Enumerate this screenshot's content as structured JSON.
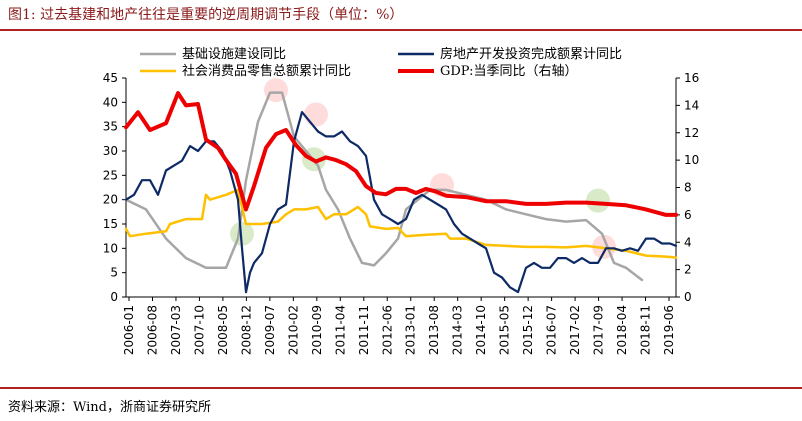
{
  "header": {
    "title": "图1:  过去基建和地产往往是重要的逆周期调节手段（单位：%）"
  },
  "footer": {
    "source": "资料来源：Wind，浙商证券研究所"
  },
  "colors": {
    "infra": "#a6a6a6",
    "realestate": "#0d2a66",
    "retail": "#ffc000",
    "gdp": "#ee0000"
  },
  "chart_data": {
    "type": "line",
    "x_ticks": [
      "2006-01",
      "2006-08",
      "2007-03",
      "2007-10",
      "2008-05",
      "2008-12",
      "2009-07",
      "2010-02",
      "2010-09",
      "2011-04",
      "2011-11",
      "2012-06",
      "2013-01",
      "2013-08",
      "2014-03",
      "2014-10",
      "2015-05",
      "2015-12",
      "2016-07",
      "2017-02",
      "2017-09",
      "2018-04",
      "2018-11",
      "2019-06"
    ],
    "y_left": {
      "ticks": [
        "0",
        "5",
        "10",
        "15",
        "20",
        "25",
        "30",
        "35",
        "40",
        "45"
      ],
      "ylim": [
        0,
        45
      ]
    },
    "y_right": {
      "ticks": [
        "0",
        "2",
        "4",
        "6",
        "8",
        "10",
        "12",
        "14",
        "16"
      ],
      "ylim": [
        0,
        16
      ]
    },
    "xlim": [
      2006.0,
      2019.75
    ],
    "legend": [
      {
        "name": "基础设施建设同比",
        "color": "#a6a6a6"
      },
      {
        "name": "房地产开发投资完成额累计同比",
        "color": "#0d2a66"
      },
      {
        "name": "社会消费品零售总额累计同比",
        "color": "#ffc000"
      },
      {
        "name": "GDP:当季同比（右轴）",
        "color": "#ee0000"
      }
    ],
    "series": [
      {
        "name": "基础设施建设同比",
        "axis": "left",
        "color": "#a6a6a6",
        "x": [
          2006.0,
          2006.5,
          2007.0,
          2007.5,
          2008.0,
          2008.5,
          2008.8,
          2009.0,
          2009.3,
          2009.6,
          2009.9,
          2010.2,
          2010.5,
          2010.8,
          2011.0,
          2011.3,
          2011.6,
          2011.9,
          2012.2,
          2012.5,
          2012.8,
          2013.0,
          2013.3,
          2013.6,
          2014.0,
          2014.5,
          2015.0,
          2015.5,
          2016.0,
          2016.5,
          2017.0,
          2017.5,
          2017.9,
          2018.2,
          2018.5,
          2018.9
        ],
        "y": [
          20,
          18,
          12,
          8,
          6,
          6,
          12,
          24,
          36,
          42,
          42,
          33,
          30,
          27,
          22,
          18,
          12,
          7,
          6.5,
          9,
          12,
          18,
          20,
          22,
          22,
          21,
          20,
          18,
          17,
          16,
          15.5,
          15.8,
          13,
          7,
          6,
          3.5
        ]
      },
      {
        "name": "房地产开发投资完成额累计同比",
        "axis": "left",
        "color": "#0d2a66",
        "x": [
          2006.0,
          2006.2,
          2006.4,
          2006.6,
          2006.8,
          2007.0,
          2007.2,
          2007.4,
          2007.6,
          2007.8,
          2008.0,
          2008.2,
          2008.4,
          2008.6,
          2008.8,
          2008.9,
          2009.0,
          2009.1,
          2009.2,
          2009.4,
          2009.6,
          2009.8,
          2010.0,
          2010.2,
          2010.4,
          2010.6,
          2010.8,
          2011.0,
          2011.2,
          2011.4,
          2011.6,
          2011.8,
          2012.0,
          2012.2,
          2012.4,
          2012.6,
          2012.8,
          2013.0,
          2013.2,
          2013.4,
          2013.6,
          2013.8,
          2014.0,
          2014.2,
          2014.4,
          2014.6,
          2014.8,
          2015.0,
          2015.2,
          2015.4,
          2015.6,
          2015.8,
          2016.0,
          2016.2,
          2016.4,
          2016.6,
          2016.8,
          2017.0,
          2017.2,
          2017.4,
          2017.6,
          2017.8,
          2018.0,
          2018.2,
          2018.4,
          2018.6,
          2018.8,
          2019.0,
          2019.2,
          2019.4,
          2019.6,
          2019.75
        ],
        "y": [
          20,
          21,
          24,
          24,
          21,
          26,
          27,
          28,
          31,
          30,
          32,
          32,
          30,
          26,
          20,
          10,
          1,
          5,
          7,
          9,
          15,
          18,
          19,
          32,
          38,
          36,
          34,
          33,
          33,
          34,
          32,
          31,
          29,
          20,
          17,
          16,
          15,
          16,
          20,
          21,
          20,
          19,
          18,
          15,
          13,
          12,
          11,
          10,
          5,
          4,
          2,
          1,
          6,
          7,
          6,
          6,
          8,
          8,
          7,
          8,
          7,
          7,
          10,
          10,
          9.5,
          10,
          9.5,
          12,
          12,
          11,
          11,
          10.5
        ]
      },
      {
        "name": "社会消费品零售总额累计同比",
        "axis": "left",
        "color": "#ffc000",
        "x": [
          2006.0,
          2006.1,
          2006.5,
          2007.0,
          2007.1,
          2007.5,
          2007.9,
          2008.0,
          2008.1,
          2008.5,
          2008.8,
          2009.0,
          2009.4,
          2009.8,
          2010.0,
          2010.2,
          2010.5,
          2010.8,
          2011.0,
          2011.2,
          2011.5,
          2011.8,
          2012.0,
          2012.1,
          2012.5,
          2012.8,
          2013.0,
          2013.5,
          2014.0,
          2014.1,
          2014.5,
          2015.0,
          2015.5,
          2016.0,
          2016.5,
          2017.0,
          2017.5,
          2018.0,
          2018.5,
          2019.0,
          2019.5,
          2019.75
        ],
        "y": [
          14,
          12.5,
          13,
          13.5,
          15,
          16,
          16,
          21,
          20,
          21,
          22,
          15,
          15,
          15.5,
          17,
          18,
          18,
          18.5,
          16,
          17,
          17,
          18.5,
          17,
          14.5,
          14,
          14.2,
          12.5,
          12.8,
          13,
          12,
          12,
          10.7,
          10.5,
          10.3,
          10.3,
          10.2,
          10.5,
          10,
          9.5,
          8.5,
          8.3,
          8.1
        ]
      },
      {
        "name": "GDP:当季同比（右轴）",
        "axis": "right",
        "color": "#ee0000",
        "x": [
          2006.0,
          2006.3,
          2006.6,
          2007.0,
          2007.3,
          2007.5,
          2007.8,
          2008.0,
          2008.3,
          2008.5,
          2008.75,
          2009.0,
          2009.2,
          2009.5,
          2009.75,
          2010.0,
          2010.25,
          2010.5,
          2010.75,
          2011.0,
          2011.25,
          2011.5,
          2011.75,
          2012.0,
          2012.25,
          2012.5,
          2012.75,
          2013.0,
          2013.25,
          2013.5,
          2013.75,
          2014.0,
          2014.5,
          2015.0,
          2015.5,
          2016.0,
          2016.5,
          2017.0,
          2017.5,
          2018.0,
          2018.5,
          2019.0,
          2019.5,
          2019.75
        ],
        "y": [
          12.4,
          13.5,
          12.2,
          12.7,
          14.9,
          14.0,
          14.1,
          11.5,
          10.9,
          10.0,
          9.0,
          6.4,
          8.1,
          10.9,
          11.9,
          12.2,
          11.1,
          10.3,
          9.9,
          10.2,
          10.0,
          9.7,
          9.2,
          8.1,
          7.6,
          7.5,
          7.9,
          7.9,
          7.6,
          7.9,
          7.7,
          7.4,
          7.3,
          7.0,
          7.0,
          6.8,
          6.8,
          6.9,
          6.9,
          6.8,
          6.7,
          6.4,
          6.0,
          6.0
        ]
      }
    ],
    "highlights": [
      {
        "x": 2008.9,
        "axis": "left",
        "y": 13,
        "color": "#d2e6c0"
      },
      {
        "x": 2009.75,
        "axis": "left",
        "y": 42.5,
        "color": "#ffd6d6"
      },
      {
        "x": 2010.75,
        "axis": "left",
        "y": 37.5,
        "color": "#ffd6d6"
      },
      {
        "x": 2010.7,
        "axis": "left",
        "y": 28.3,
        "color": "#d2e6c0"
      },
      {
        "x": 2013.9,
        "axis": "left",
        "y": 23,
        "color": "#ffd6d6"
      },
      {
        "x": 2017.8,
        "axis": "left",
        "y": 19.8,
        "color": "#d2e6c0"
      },
      {
        "x": 2017.95,
        "axis": "left",
        "y": 10.3,
        "color": "#ffd6d6"
      }
    ]
  }
}
